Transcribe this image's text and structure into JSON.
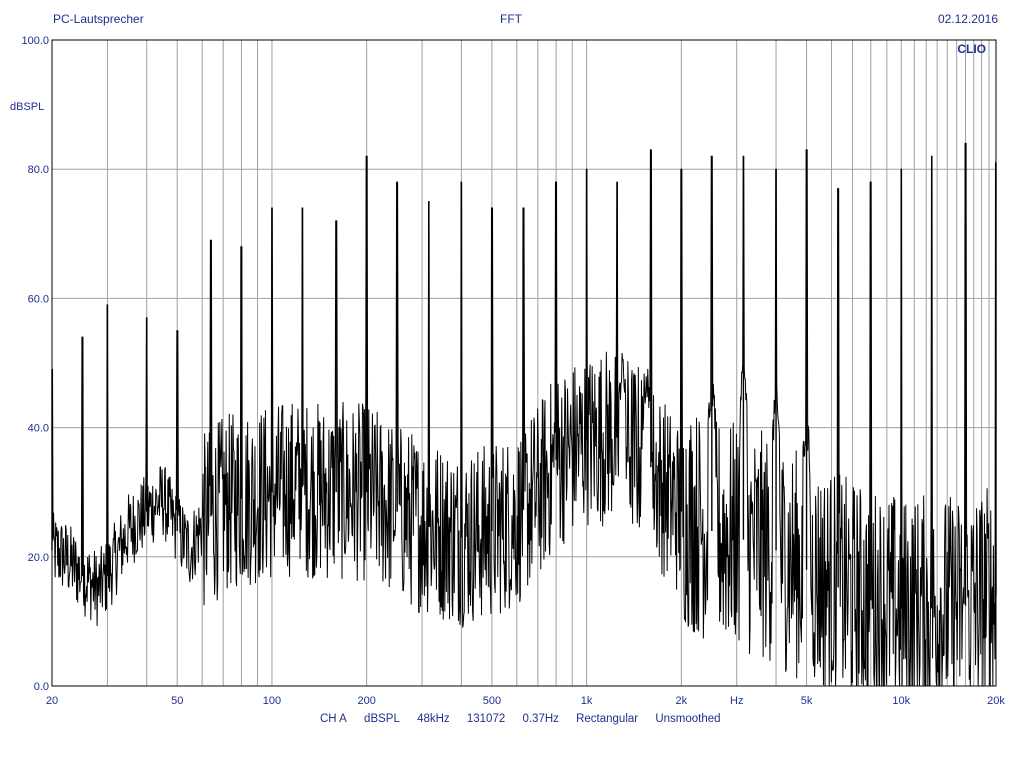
{
  "header": {
    "left": "PC-Lautsprecher",
    "center": "FFT",
    "right": "02.12.2016"
  },
  "footer": {
    "items": [
      "CH A",
      "dBSPL",
      "48kHz",
      "131072",
      "0.37Hz",
      "Rectangular",
      "Unsmoothed"
    ]
  },
  "chart_data": {
    "type": "line",
    "title": "FFT",
    "brand": "CLIO",
    "xlabel": "Hz",
    "ylabel": "dBSPL",
    "x_scale": "log",
    "xlim": [
      20,
      20000
    ],
    "ylim": [
      0,
      100
    ],
    "x_ticks": [
      {
        "value": 20,
        "label": "20"
      },
      {
        "value": 50,
        "label": "50"
      },
      {
        "value": 100,
        "label": "100"
      },
      {
        "value": 200,
        "label": "200"
      },
      {
        "value": 500,
        "label": "500"
      },
      {
        "value": 1000,
        "label": "1k"
      },
      {
        "value": 2000,
        "label": "2k"
      },
      {
        "value": 3000,
        "label": "Hz"
      },
      {
        "value": 5000,
        "label": "5k"
      },
      {
        "value": 10000,
        "label": "10k"
      },
      {
        "value": 20000,
        "label": "20k"
      }
    ],
    "y_ticks": [
      {
        "value": 0,
        "label": "0.0"
      },
      {
        "value": 20,
        "label": "20.0"
      },
      {
        "value": 40,
        "label": "40.0"
      },
      {
        "value": 60,
        "label": "60.0"
      },
      {
        "value": 80,
        "label": "80.0"
      },
      {
        "value": 100,
        "label": "100.0"
      }
    ],
    "grid": true,
    "line_color": "#000000",
    "axis_text_color": "#1f2f8f",
    "grid_color": "#a0a0a0",
    "series": [
      {
        "noise_floor": [
          [
            20,
            21
          ],
          [
            22,
            20
          ],
          [
            25,
            17
          ],
          [
            28,
            15
          ],
          [
            30,
            17
          ],
          [
            35,
            24
          ],
          [
            40,
            27
          ],
          [
            45,
            29
          ],
          [
            50,
            24
          ],
          [
            55,
            21
          ],
          [
            60,
            25
          ],
          [
            70,
            28
          ],
          [
            80,
            29
          ],
          [
            100,
            30
          ],
          [
            120,
            31
          ],
          [
            150,
            30
          ],
          [
            200,
            30
          ],
          [
            250,
            27
          ],
          [
            300,
            25
          ],
          [
            400,
            23
          ],
          [
            500,
            24
          ],
          [
            600,
            26
          ],
          [
            700,
            30
          ],
          [
            800,
            35
          ],
          [
            1000,
            38
          ],
          [
            1200,
            39
          ],
          [
            1500,
            36
          ],
          [
            1800,
            30
          ],
          [
            2000,
            27
          ],
          [
            2500,
            24
          ],
          [
            3000,
            23
          ],
          [
            4000,
            21
          ],
          [
            5000,
            18
          ],
          [
            7000,
            14
          ],
          [
            10000,
            12
          ],
          [
            15000,
            12
          ],
          [
            20000,
            14
          ]
        ],
        "peaks": [
          [
            20,
            49
          ],
          [
            25,
            54
          ],
          [
            30,
            59
          ],
          [
            40,
            57
          ],
          [
            50,
            55
          ],
          [
            64,
            69
          ],
          [
            80,
            68
          ],
          [
            100,
            74
          ],
          [
            125,
            74
          ],
          [
            160,
            72
          ],
          [
            200,
            82
          ],
          [
            250,
            78
          ],
          [
            315,
            75
          ],
          [
            400,
            78
          ],
          [
            500,
            74
          ],
          [
            630,
            74
          ],
          [
            800,
            78
          ],
          [
            1000,
            80
          ],
          [
            1250,
            78
          ],
          [
            1600,
            83
          ],
          [
            2000,
            80
          ],
          [
            2500,
            82
          ],
          [
            3150,
            82
          ],
          [
            4000,
            80
          ],
          [
            5000,
            83
          ],
          [
            6300,
            77
          ],
          [
            8000,
            78
          ],
          [
            10000,
            80
          ],
          [
            12500,
            82
          ],
          [
            16000,
            84
          ],
          [
            20000,
            81
          ]
        ],
        "resonances": [
          [
            1550,
            49
          ],
          [
            1300,
            50
          ],
          [
            2500,
            47
          ],
          [
            3150,
            49
          ],
          [
            4000,
            45
          ],
          [
            5000,
            41
          ]
        ]
      }
    ]
  }
}
